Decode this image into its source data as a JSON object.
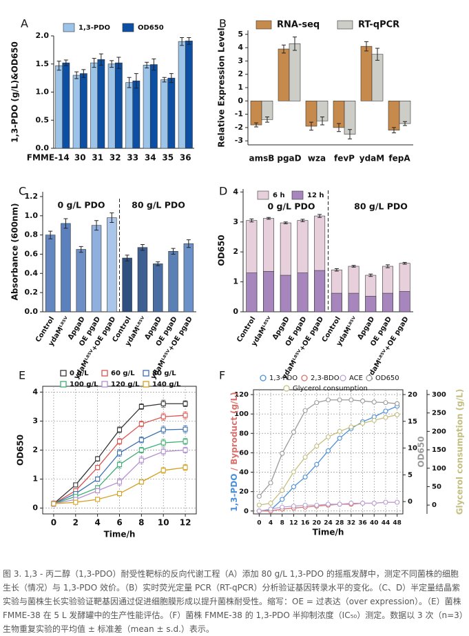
{
  "chart_data": [
    {
      "type": "bar",
      "panel": "A",
      "ylabel": "1,3-PDO (g/L)&OD650",
      "categories": [
        "FMME-14",
        "30",
        "31",
        "32",
        "33",
        "34",
        "35",
        "36"
      ],
      "series": [
        {
          "name": "1,3-PDO",
          "color": "#9cc3e8",
          "values": [
            1.47,
            1.3,
            1.52,
            1.5,
            1.17,
            1.48,
            1.22,
            1.9
          ],
          "errors": [
            0.08,
            0.06,
            0.08,
            0.06,
            0.09,
            0.05,
            0.04,
            0.07
          ]
        },
        {
          "name": "OD650",
          "color": "#0c4fa3",
          "values": [
            1.52,
            1.33,
            1.58,
            1.52,
            1.2,
            1.49,
            1.25,
            1.91
          ],
          "errors": [
            0.05,
            0.07,
            0.1,
            0.1,
            0.13,
            0.1,
            0.08,
            0.06
          ]
        }
      ],
      "ylim": [
        0,
        2.0
      ],
      "yticks": [
        {
          "value": 0,
          "label": "0.0"
        },
        0.5,
        {
          "value": 1,
          "label": "1.0"
        },
        1.5,
        {
          "value": 2,
          "label": "2.0"
        }
      ]
    },
    {
      "type": "bar",
      "panel": "B",
      "ylabel": "Relative Expression Level",
      "categories": [
        "amsB",
        "pgaD",
        "wza",
        "fevP",
        "ydaM",
        "fepA"
      ],
      "series": [
        {
          "name": "RNA-seq",
          "color": "#c68a4c",
          "values": [
            -1.8,
            3.9,
            -1.9,
            -2.0,
            4.1,
            -2.2
          ],
          "errors": [
            0.15,
            0.3,
            0.3,
            0.3,
            0.35,
            0.2
          ]
        },
        {
          "name": "RT-qPCR",
          "color": "#cbcdc6",
          "values": [
            -1.4,
            4.3,
            -1.5,
            -2.5,
            3.5,
            -1.7
          ],
          "errors": [
            0.2,
            0.5,
            0.3,
            0.35,
            0.45,
            0.15
          ]
        }
      ],
      "ylim": [
        -3.3,
        5.3
      ],
      "yticks": [
        -3,
        -2,
        -1,
        0,
        1,
        2,
        3,
        4,
        5
      ]
    },
    {
      "type": "bar",
      "panel": "C",
      "ylabel": "Absorbance (600nm)",
      "categories": [
        "Control",
        "ydaMᴸ⁸⁵ⱽ",
        "ΔpgaD",
        "OE pgaD",
        "ydaMᴸ⁸⁵ⱽ+OE pgaD",
        "Control",
        "ydaMᴸ⁸⁵ⱽ",
        "ΔpgaD",
        "OE pgaD",
        "ydaMᴸ⁸⁵ⱽ+OE pgaD"
      ],
      "values": [
        0.8,
        0.92,
        0.65,
        0.9,
        0.98,
        0.56,
        0.67,
        0.5,
        0.63,
        0.71
      ],
      "errors": [
        0.04,
        0.05,
        0.03,
        0.05,
        0.05,
        0.03,
        0.03,
        0.02,
        0.03,
        0.04
      ],
      "colors": [
        "#6487c0",
        "#5a80bd",
        "#6e8fc5",
        "#8fb0dd",
        "#a9c6ea",
        "#2f4f80",
        "#3d5f92",
        "#4a6ea3",
        "#5a80b6",
        "#6b91c8"
      ],
      "annotations": [
        "0 g/L PDO",
        "80 g/L PDO"
      ],
      "ylim": [
        0,
        1.25
      ],
      "yticks": [
        {
          "value": 0,
          "label": "0.0"
        },
        0.2,
        0.4,
        0.6,
        0.8,
        {
          "value": 1,
          "label": "1.0"
        },
        1.2
      ]
    },
    {
      "type": "bar",
      "panel": "D",
      "ylabel": "OD650",
      "overlay": true,
      "categories": [
        "Control",
        "ydaMᴸ⁸⁵ⱽ",
        "ΔpgaD",
        "OE pgaD",
        "ydaMᴸ⁸⁵ⱽ+OE pgaD",
        "Control",
        "ydaMᴸ⁸⁵ⱽ",
        "ΔpgaD",
        "OE pgaD",
        "ydaMᴸ⁸⁵ⱽ+OE pgaD"
      ],
      "series": [
        {
          "name": "6 h",
          "color": "#e8cfdc",
          "values": [
            3.05,
            3.12,
            2.97,
            3.05,
            3.2,
            1.4,
            1.52,
            1.22,
            1.52,
            1.62
          ],
          "errors": [
            0.05,
            0.03,
            0.03,
            0.04,
            0.05,
            0.04,
            0.03,
            0.04,
            0.05,
            0.03
          ]
        },
        {
          "name": "12 h",
          "color": "#a785bd",
          "values": [
            1.3,
            1.35,
            1.22,
            1.3,
            1.38,
            0.62,
            0.62,
            0.52,
            0.62,
            0.68
          ]
        }
      ],
      "annotations": [
        "0 g/L PDO",
        "80 g/L PDO"
      ],
      "ylim": [
        0,
        4.1
      ],
      "yticks": [
        0,
        1,
        2,
        3,
        4
      ]
    },
    {
      "type": "line",
      "panel": "E",
      "ylabel": "OD650",
      "xlabel": "Time/h",
      "grid": true,
      "x": [
        0,
        2,
        4,
        6,
        8,
        10,
        12
      ],
      "series": [
        {
          "name": "0 g/L",
          "color": "#333333",
          "values": [
            0.15,
            0.8,
            1.7,
            2.7,
            3.5,
            3.6,
            3.6
          ],
          "errors": [
            0.05,
            0.05,
            0.08,
            0.1,
            0.1,
            0.12,
            0.1
          ]
        },
        {
          "name": "60 g/L",
          "color": "#d9534f",
          "values": [
            0.15,
            0.6,
            1.4,
            2.3,
            2.9,
            3.15,
            3.2
          ],
          "errors": [
            0.05,
            0.05,
            0.08,
            0.1,
            0.1,
            0.12,
            0.12
          ]
        },
        {
          "name": "80 g/L",
          "color": "#3a6fb0",
          "values": [
            0.15,
            0.5,
            1.0,
            1.9,
            2.35,
            2.7,
            2.72
          ],
          "errors": [
            0.05,
            0.05,
            0.08,
            0.12,
            0.1,
            0.12,
            0.12
          ]
        },
        {
          "name": "100 g/L",
          "color": "#3fae74",
          "values": [
            0.15,
            0.4,
            0.7,
            1.5,
            2.0,
            2.25,
            2.3
          ],
          "errors": [
            0.05,
            0.05,
            0.08,
            0.12,
            0.1,
            0.12,
            0.1
          ]
        },
        {
          "name": "120 g/L",
          "color": "#b28fd0",
          "values": [
            0.15,
            0.3,
            0.6,
            0.9,
            1.65,
            1.95,
            2.0
          ],
          "errors": [
            0.1,
            0.05,
            0.08,
            0.12,
            0.12,
            0.12,
            0.1
          ]
        },
        {
          "name": "140 g/L",
          "color": "#d4a020",
          "values": [
            0.15,
            0.2,
            0.3,
            0.5,
            0.9,
            1.3,
            1.4
          ],
          "errors": [
            0.05,
            0.05,
            0.05,
            0.08,
            0.08,
            0.1,
            0.1
          ]
        }
      ],
      "xlim": [
        -1,
        13
      ],
      "xticks": [
        0,
        2,
        4,
        6,
        8,
        10,
        12
      ],
      "ylim": [
        -0.2,
        4.2
      ],
      "yticks": [
        0,
        1,
        2,
        3,
        4
      ]
    },
    {
      "type": "line",
      "panel": "F",
      "ylabel": [
        "1,3-PDO",
        " / Byproduct (g/L)"
      ],
      "y2label": "OD650",
      "y3label": "Glycerol consumption (g/L)",
      "xlabel": "Time/h",
      "grid": true,
      "x": [
        0,
        4,
        8,
        12,
        16,
        20,
        24,
        28,
        32,
        36,
        40,
        44,
        48
      ],
      "series": [
        {
          "name": "1,3-PDO",
          "color": "#4a90d9",
          "values": [
            0,
            1,
            12,
            25,
            35,
            48,
            62,
            75,
            85,
            92,
            97,
            103,
            108
          ]
        },
        {
          "name": "2,3-BDO",
          "color": "#d9706b",
          "values": [
            0,
            0,
            2,
            3,
            4,
            5,
            6,
            7,
            7,
            8,
            8,
            9,
            9
          ]
        },
        {
          "name": "ACE",
          "color": "#b9a3d6",
          "values": [
            0,
            2,
            4,
            5,
            6,
            6,
            7,
            7,
            8,
            8,
            8,
            9,
            9
          ]
        },
        {
          "name": "OD650",
          "color": "#9a9a9a",
          "axis": "y2",
          "values": [
            1,
            3.5,
            9,
            13,
            17,
            18.5,
            19,
            19,
            19,
            18.8,
            18.6,
            18.5,
            18.3
          ]
        },
        {
          "name": "Glycerol consumption",
          "color": "#c4bf80",
          "axis": "y3",
          "values": [
            0,
            5,
            40,
            90,
            130,
            160,
            185,
            200,
            212,
            222,
            230,
            238,
            245
          ]
        }
      ],
      "xlim": [
        -2,
        50
      ],
      "xticks": [
        0,
        4,
        8,
        12,
        16,
        20,
        24,
        28,
        32,
        36,
        40,
        44,
        48
      ],
      "ylim": [
        -3,
        125
      ],
      "yticks": [
        0,
        20,
        40,
        60,
        80,
        100,
        120
      ],
      "y2lim": [
        -2.3,
        20.9
      ],
      "y2ticks": [
        0,
        5,
        10,
        15,
        20
      ],
      "y3lim": [
        -24,
        313
      ],
      "y3ticks": [
        0,
        50,
        100,
        150,
        200,
        250,
        300
      ]
    }
  ],
  "caption": "图 3. 1,3 - 丙二醇（1,3-PDO）耐受性靶标的反向代谢工程（A）添加 80 g/L 1,3-PDO 的摇瓶发酵中，测定不同菌株的细胞生长（情况）与 1,3-PDO 效价。（B）实时荧光定量 PCR（RT-qPCR）分析验证基因转录水平的变化。（C、D）半定量结晶紫实验与菌株生长实验验证靶基因通过促进细胞膜形成以提升菌株耐受性。缩写：OE = 过表达（over expression）。（E）菌株 FMME-38 在 5 L 发酵罐中的生产性能评估。（F）菌株 FMME-38 的 1,3-PDO 半抑制浓度（IC₅₀）测定。数据以 3 次（n=3）生物重复实验的平均值 ± 标准差（mean ± s.d.）表示。"
}
